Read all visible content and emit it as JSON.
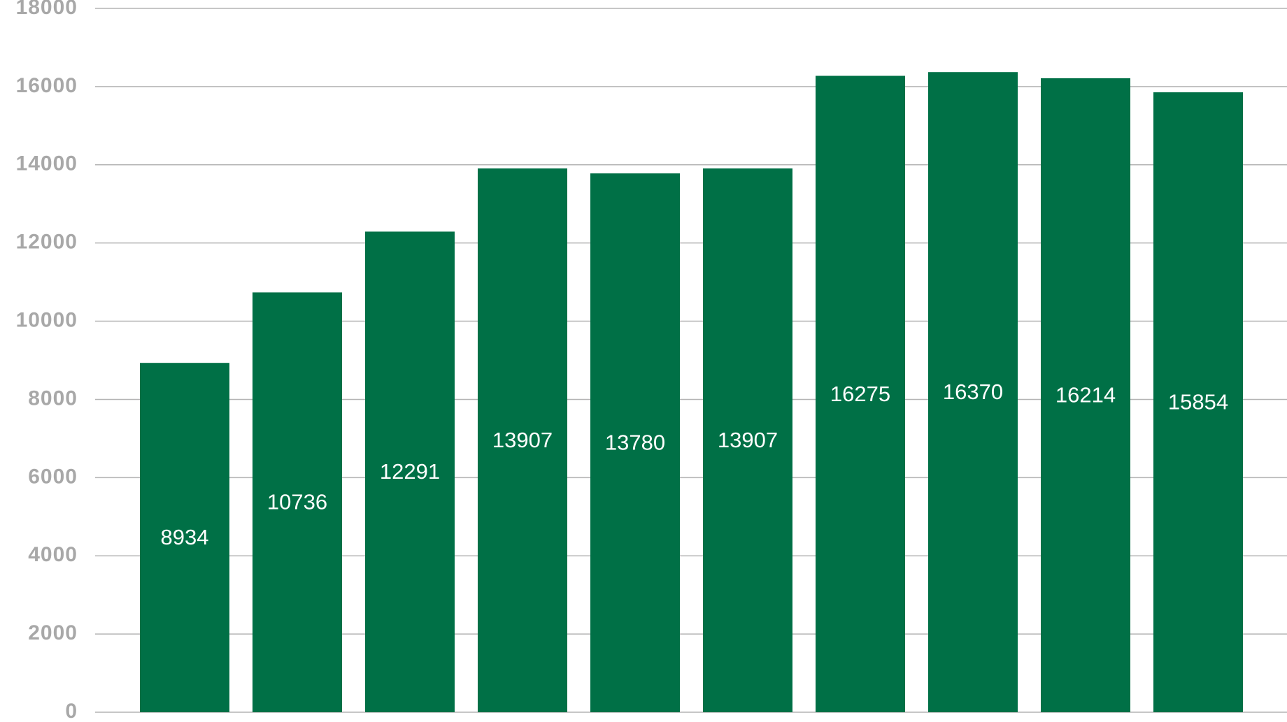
{
  "chart_data": {
    "type": "bar",
    "title": "",
    "xlabel": "",
    "ylabel": "",
    "categories": [
      "",
      "",
      "",
      "",
      "",
      "",
      "",
      "",
      "",
      ""
    ],
    "series": [
      {
        "values": [
          8934,
          10736,
          12291,
          13907,
          13780,
          13907,
          16275,
          16370,
          16214,
          15854
        ]
      }
    ],
    "data_labels": [
      "8934",
      "10736",
      "12291",
      "13907",
      "13780",
      "13907",
      "16275",
      "16370",
      "16214",
      "15854"
    ],
    "ylim": [
      0,
      18000
    ],
    "yticks": [
      0,
      2000,
      4000,
      6000,
      8000,
      10000,
      12000,
      14000,
      16000,
      18000
    ],
    "ytick_labels": [
      "0",
      "2000",
      "4000",
      "6000",
      "8000",
      "10000",
      "12000",
      "14000",
      "16000",
      "18000"
    ],
    "grid": true,
    "legend": "none",
    "colors": {
      "bar": "#007046",
      "data_label": "#ffffff",
      "tick_label": "#a8a8a8",
      "grid": "#b4b4b4"
    }
  }
}
